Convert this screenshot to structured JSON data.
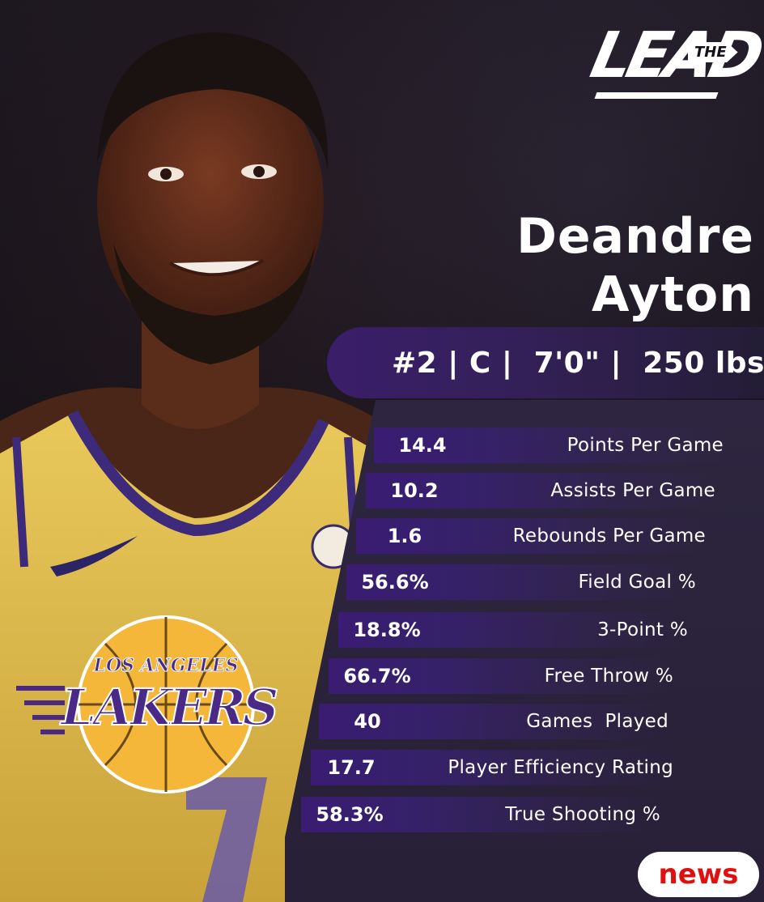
{
  "brand": {
    "word": "LEAD",
    "tag": "THE"
  },
  "player": {
    "first_name": "Deandre",
    "last_name": "Ayton",
    "info": "#2 | C |  7'0\" |  250 lbs"
  },
  "stats": [
    {
      "value": "14.4",
      "label": "Points Per Game"
    },
    {
      "value": "10.2",
      "label": "Assists Per Game"
    },
    {
      "value": "1.6",
      "label": "Rebounds Per Game"
    },
    {
      "value": "56.6%",
      "label": "Field Goal %"
    },
    {
      "value": "18.8%",
      "label": "3-Point %"
    },
    {
      "value": "66.7%",
      "label": "Free Throw %"
    },
    {
      "value": "40",
      "label": "Games  Played"
    },
    {
      "value": "17.7",
      "label": "Player Efficiency Rating"
    },
    {
      "value": "58.3%",
      "label": "True Shooting %"
    }
  ],
  "team_logo": {
    "line1": "LOS ANGELES",
    "line2": "LAKERS"
  },
  "badge": {
    "label": "news"
  },
  "colors": {
    "accent_purple": "#3a1c72",
    "lakers_gold": "#f4b73a",
    "lakers_purple": "#4b2a87",
    "badge_red": "#e01010"
  }
}
